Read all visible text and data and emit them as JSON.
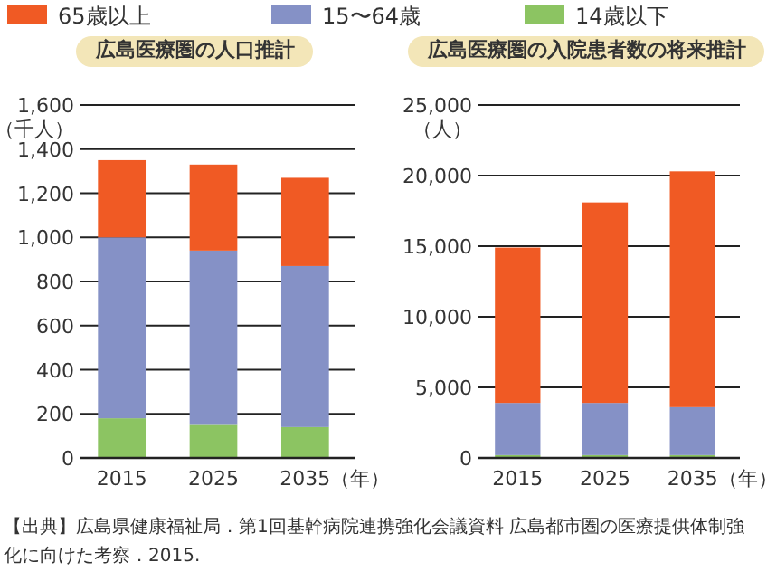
{
  "chart_data": [
    {
      "type": "bar",
      "title": "広島医療圏の人口推計",
      "ylabel": "（千人）",
      "xlabel": "（年）",
      "categories": [
        "2015",
        "2025",
        "2035"
      ],
      "stacked": true,
      "legend": "top",
      "grid": "y",
      "ylim": [
        0,
        1600
      ],
      "yticks": [
        0,
        {
          "value": 200,
          "label": "200"
        },
        {
          "value": 400,
          "label": "400"
        },
        {
          "value": 600,
          "label": "600"
        },
        {
          "value": 800,
          "label": "800"
        },
        {
          "value": 1000,
          "label": "1,000"
        },
        {
          "value": 1200,
          "label": "1,200"
        },
        {
          "value": 1400,
          "label": "1,400"
        },
        {
          "value": 1600,
          "label": "1,600"
        }
      ],
      "series": [
        {
          "name": "14歳以下",
          "color": "#8cc462",
          "values": [
            180,
            150,
            140
          ]
        },
        {
          "name": "15〜64歳",
          "color": "#8591c6",
          "values": [
            820,
            790,
            730
          ]
        },
        {
          "name": "65歳以上",
          "color": "#f05a24",
          "values": [
            350,
            390,
            400
          ]
        }
      ],
      "annotations": [
        "【出典】広島県健康福祉局．第1回基幹病院連携強化会議資料 広島都市圏の医療提供体制強化に向けた考察．2015."
      ]
    },
    {
      "type": "bar",
      "title": "広島医療圏の入院患者数の将来推計",
      "ylabel": "（人）",
      "xlabel": "（年）",
      "categories": [
        "2015",
        "2025",
        "2035"
      ],
      "stacked": true,
      "grid": "y",
      "ylim": [
        0,
        25000
      ],
      "yticks": [
        0,
        {
          "value": 5000,
          "label": "5,000"
        },
        {
          "value": 10000,
          "label": "10,000"
        },
        {
          "value": 15000,
          "label": "15,000"
        },
        {
          "value": 20000,
          "label": "20,000"
        },
        {
          "value": 25000,
          "label": "25,000"
        }
      ],
      "series": [
        {
          "color": "#8cc462",
          "values": [
            200,
            200,
            200
          ]
        },
        {
          "color": "#8591c6",
          "values": [
            3700,
            3700,
            3400
          ]
        },
        {
          "color": "#f05a24",
          "values": [
            11000,
            14200,
            16700
          ]
        }
      ]
    }
  ]
}
